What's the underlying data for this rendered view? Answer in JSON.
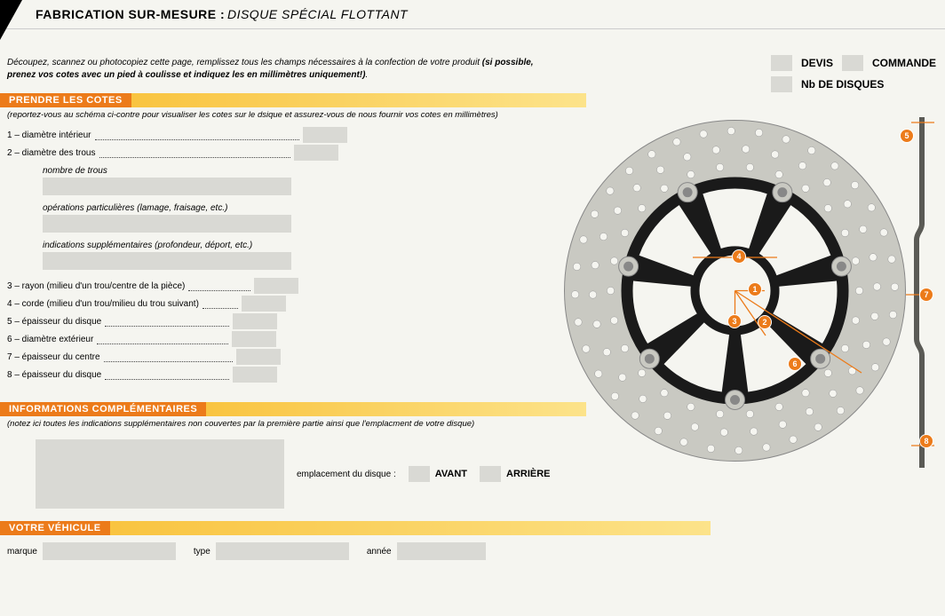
{
  "header": {
    "title": "FABRICATION SUR-MESURE :",
    "subtitle": "DISQUE SPÉCIAL FLOTTANT"
  },
  "intro": {
    "text1": "Découpez, scannez ou photocopiez cette page, remplissez tous les champs nécessaires à la confection de votre produit ",
    "bold": "(si possible, prenez vos cotes avec un pied à coulisse et indiquez les en millimètres uniquement!)",
    "dot": "."
  },
  "sections": {
    "cotes": {
      "title": "PRENDRE LES COTES",
      "note": "(reportez-vous au schéma ci-contre pour visualiser les cotes sur le dsique et assurez-vous de nous fournir vos cotes en millimètres)"
    },
    "infos": {
      "title": "INFORMATIONS COMPLÉMENTAIRES",
      "note": "(notez ici toutes les indications supplémentaires non couvertes par la première partie ainsi que l'emplacment de votre disque)"
    },
    "vehicle": {
      "title": "VOTRE VÉHICULE"
    }
  },
  "fields": {
    "f1": "1 – diamètre intérieur",
    "f2": "2 – diamètre des trous",
    "nb_trous": "nombre de trous",
    "ops": "opérations particulières (lamage, fraisage, etc.)",
    "ind": "indications supplémentaires (profondeur, déport, etc.)",
    "f3": "3 – rayon (milieu d'un trou/centre de la pièce)",
    "f4": "4 – corde (milieu d'un trou/milieu du trou suivant)",
    "f5": "5 – épaisseur du disque",
    "f6": "6 – diamètre extérieur",
    "f7": "7 – épaisseur du centre",
    "f8": "8 – épaisseur du disque",
    "emplacement": "emplacement du disque :",
    "avant": "AVANT",
    "arriere": "ARRIÈRE",
    "marque": "marque",
    "type": "type",
    "annee": "année"
  },
  "topright": {
    "devis": "DEVIS",
    "commande": "COMMANDE",
    "nb": "Nb DE DISQUES"
  },
  "markers": {
    "m1": "1",
    "m2": "2",
    "m3": "3",
    "m4": "4",
    "m5": "5",
    "m6": "6",
    "m7": "7",
    "m8": "8"
  },
  "colors": {
    "orange": "#ec7b1a",
    "yellow1": "#f9c440",
    "grey": "#d9d9d4",
    "disc": "#c9c9c2",
    "dark": "#1a1a1a"
  }
}
